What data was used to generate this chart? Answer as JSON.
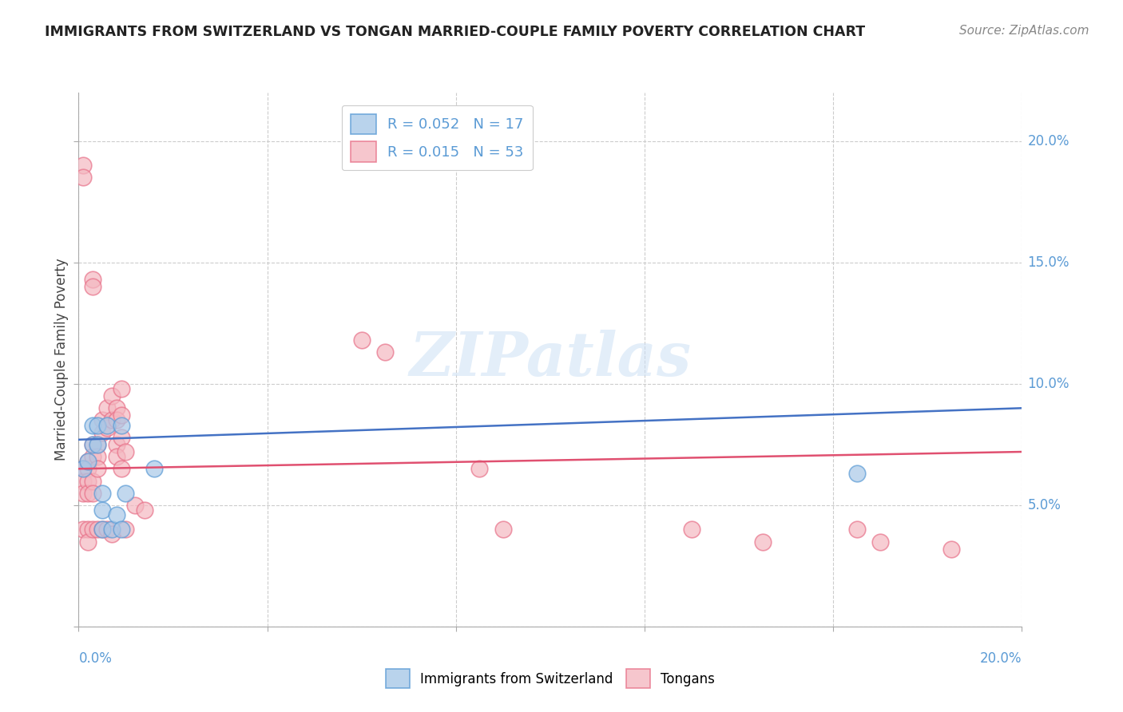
{
  "title": "IMMIGRANTS FROM SWITZERLAND VS TONGAN MARRIED-COUPLE FAMILY POVERTY CORRELATION CHART",
  "source": "Source: ZipAtlas.com",
  "ylabel": "Married-Couple Family Poverty",
  "xlim": [
    0.0,
    0.2
  ],
  "ylim": [
    0.0,
    0.22
  ],
  "switzerland_R": 0.052,
  "switzerland_N": 17,
  "tongan_R": 0.015,
  "tongan_N": 53,
  "switzerland_color": "#a8c8e8",
  "switzerland_edge": "#5b9bd5",
  "tongan_color": "#f4b8c1",
  "tongan_edge": "#e8728a",
  "blue_line_color": "#4472c4",
  "pink_line_color": "#e05070",
  "watermark": "ZIPatlas",
  "background_color": "#ffffff",
  "grid_color": "#cccccc",
  "tick_label_color": "#5b9bd5",
  "title_color": "#222222",
  "source_color": "#888888",
  "ylabel_color": "#444444",
  "switzerland_x": [
    0.001,
    0.002,
    0.003,
    0.003,
    0.004,
    0.004,
    0.005,
    0.005,
    0.005,
    0.006,
    0.007,
    0.008,
    0.009,
    0.009,
    0.01,
    0.016,
    0.165
  ],
  "switzerland_y": [
    0.065,
    0.068,
    0.083,
    0.075,
    0.075,
    0.083,
    0.055,
    0.048,
    0.04,
    0.083,
    0.04,
    0.046,
    0.083,
    0.04,
    0.055,
    0.065,
    0.063
  ],
  "tongan_x": [
    0.001,
    0.001,
    0.001,
    0.001,
    0.001,
    0.001,
    0.002,
    0.002,
    0.002,
    0.002,
    0.002,
    0.002,
    0.003,
    0.003,
    0.003,
    0.003,
    0.003,
    0.003,
    0.003,
    0.004,
    0.004,
    0.004,
    0.004,
    0.005,
    0.005,
    0.005,
    0.006,
    0.006,
    0.006,
    0.007,
    0.007,
    0.007,
    0.008,
    0.008,
    0.008,
    0.008,
    0.009,
    0.009,
    0.009,
    0.009,
    0.01,
    0.01,
    0.012,
    0.014,
    0.06,
    0.065,
    0.085,
    0.09,
    0.13,
    0.145,
    0.165,
    0.17,
    0.185
  ],
  "tongan_y": [
    0.19,
    0.185,
    0.065,
    0.06,
    0.055,
    0.04,
    0.068,
    0.065,
    0.06,
    0.055,
    0.04,
    0.035,
    0.143,
    0.14,
    0.075,
    0.07,
    0.06,
    0.055,
    0.04,
    0.075,
    0.07,
    0.065,
    0.04,
    0.085,
    0.08,
    0.04,
    0.09,
    0.082,
    0.04,
    0.095,
    0.085,
    0.038,
    0.09,
    0.085,
    0.075,
    0.07,
    0.098,
    0.087,
    0.078,
    0.065,
    0.072,
    0.04,
    0.05,
    0.048,
    0.118,
    0.113,
    0.065,
    0.04,
    0.04,
    0.035,
    0.04,
    0.035,
    0.032
  ],
  "swiss_line_x": [
    0.0,
    0.2
  ],
  "swiss_line_y": [
    0.077,
    0.09
  ],
  "tongan_line_x": [
    0.0,
    0.2
  ],
  "tongan_line_y": [
    0.065,
    0.072
  ]
}
